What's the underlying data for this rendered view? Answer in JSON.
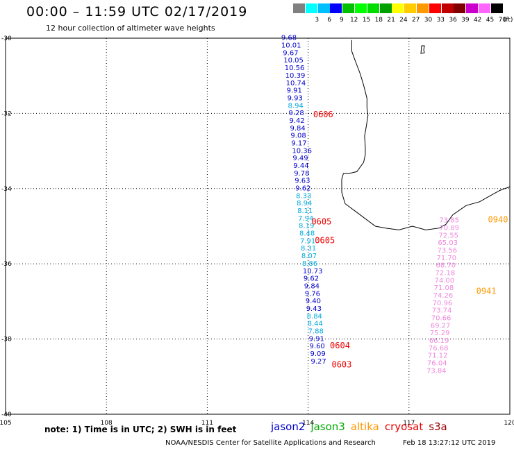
{
  "header": {
    "title": "00:00 – 11:59 UTC 02/17/2019",
    "subtitle": "12 hour collection of altimeter wave heights"
  },
  "legend": {
    "unit": "(ft)",
    "entries": [
      {
        "label": "",
        "color": "#808080"
      },
      {
        "label": "3",
        "color": "#00ffff"
      },
      {
        "label": "6",
        "color": "#00bfff"
      },
      {
        "label": "9",
        "color": "#0000ff"
      },
      {
        "label": "12",
        "color": "#00c000"
      },
      {
        "label": "15",
        "color": "#00ff00"
      },
      {
        "label": "18",
        "color": "#00dd00"
      },
      {
        "label": "21",
        "color": "#00a000"
      },
      {
        "label": "24",
        "color": "#ffff00"
      },
      {
        "label": "27",
        "color": "#ffcc00"
      },
      {
        "label": "30",
        "color": "#ff9900"
      },
      {
        "label": "33",
        "color": "#ff0000"
      },
      {
        "label": "36",
        "color": "#c00000"
      },
      {
        "label": "39",
        "color": "#800000"
      },
      {
        "label": "42",
        "color": "#cc00cc"
      },
      {
        "label": "45",
        "color": "#ff66ff"
      },
      {
        "label": "70",
        "color": "#000000"
      }
    ]
  },
  "map": {
    "lon_range": [
      105,
      120
    ],
    "lat_range": [
      -40,
      -30
    ],
    "lon_ticks": [
      "105",
      "108",
      "111",
      "114",
      "117",
      "120"
    ],
    "lat_ticks": [
      "-30",
      "-32",
      "-34",
      "-36",
      "-38",
      "-40"
    ],
    "lon_tick_values": [
      105,
      108,
      111,
      114,
      117,
      120
    ],
    "lat_tick_values": [
      -30,
      -32,
      -34,
      -36,
      -38,
      -40
    ],
    "track_colors": {
      "dark": "#0000cc",
      "light": "#00aadd",
      "pink": "#ee88dd",
      "red": "#ee0000",
      "orange": "#ff9900"
    },
    "track_jason2": [
      {
        "lon": 113.2,
        "lat": -30.05,
        "v": "9.68",
        "c": "dark"
      },
      {
        "lon": 113.2,
        "lat": -30.25,
        "v": "10.01",
        "c": "dark"
      },
      {
        "lon": 113.25,
        "lat": -30.45,
        "v": "9.67",
        "c": "dark"
      },
      {
        "lon": 113.27,
        "lat": -30.65,
        "v": "10.05",
        "c": "dark"
      },
      {
        "lon": 113.3,
        "lat": -30.85,
        "v": "10.56",
        "c": "dark"
      },
      {
        "lon": 113.32,
        "lat": -31.05,
        "v": "10.39",
        "c": "dark"
      },
      {
        "lon": 113.34,
        "lat": -31.25,
        "v": "10.74",
        "c": "dark"
      },
      {
        "lon": 113.36,
        "lat": -31.45,
        "v": "9.91",
        "c": "dark"
      },
      {
        "lon": 113.38,
        "lat": -31.65,
        "v": "9.93",
        "c": "dark"
      },
      {
        "lon": 113.4,
        "lat": -31.85,
        "v": "8.94",
        "c": "light"
      },
      {
        "lon": 113.42,
        "lat": -32.05,
        "v": "9.28",
        "c": "dark"
      },
      {
        "lon": 113.44,
        "lat": -32.25,
        "v": "9.42",
        "c": "dark"
      },
      {
        "lon": 113.46,
        "lat": -32.45,
        "v": "9.84",
        "c": "dark"
      },
      {
        "lon": 113.48,
        "lat": -32.65,
        "v": "9.08",
        "c": "dark"
      },
      {
        "lon": 113.5,
        "lat": -32.85,
        "v": "9.17",
        "c": "dark"
      },
      {
        "lon": 113.52,
        "lat": -33.05,
        "v": "10.36",
        "c": "dark"
      },
      {
        "lon": 113.54,
        "lat": -33.25,
        "v": "9.49",
        "c": "dark"
      },
      {
        "lon": 113.56,
        "lat": -33.45,
        "v": "9.44",
        "c": "dark"
      },
      {
        "lon": 113.58,
        "lat": -33.65,
        "v": "9.78",
        "c": "dark"
      },
      {
        "lon": 113.6,
        "lat": -33.85,
        "v": "9.63",
        "c": "dark"
      },
      {
        "lon": 113.62,
        "lat": -34.05,
        "v": "9.62",
        "c": "dark"
      },
      {
        "lon": 113.64,
        "lat": -34.25,
        "v": "8.33",
        "c": "light"
      },
      {
        "lon": 113.66,
        "lat": -34.45,
        "v": "8.94",
        "c": "light"
      },
      {
        "lon": 113.68,
        "lat": -34.65,
        "v": "8.11",
        "c": "light"
      },
      {
        "lon": 113.7,
        "lat": -34.85,
        "v": "7.94",
        "c": "light"
      },
      {
        "lon": 113.72,
        "lat": -35.05,
        "v": "8.19",
        "c": "light"
      },
      {
        "lon": 113.74,
        "lat": -35.25,
        "v": "8.48",
        "c": "light"
      },
      {
        "lon": 113.76,
        "lat": -35.45,
        "v": "7.91",
        "c": "light"
      },
      {
        "lon": 113.78,
        "lat": -35.65,
        "v": "8.31",
        "c": "light"
      },
      {
        "lon": 113.8,
        "lat": -35.85,
        "v": "8.07",
        "c": "light"
      },
      {
        "lon": 113.82,
        "lat": -36.05,
        "v": "8.86",
        "c": "light"
      },
      {
        "lon": 113.84,
        "lat": -36.25,
        "v": "10.73",
        "c": "dark"
      },
      {
        "lon": 113.86,
        "lat": -36.45,
        "v": "9.62",
        "c": "dark"
      },
      {
        "lon": 113.88,
        "lat": -36.65,
        "v": "9.84",
        "c": "dark"
      },
      {
        "lon": 113.9,
        "lat": -36.85,
        "v": "9.76",
        "c": "dark"
      },
      {
        "lon": 113.92,
        "lat": -37.05,
        "v": "9.40",
        "c": "dark"
      },
      {
        "lon": 113.94,
        "lat": -37.25,
        "v": "9.43",
        "c": "dark"
      },
      {
        "lon": 113.96,
        "lat": -37.45,
        "v": "8.84",
        "c": "light"
      },
      {
        "lon": 113.98,
        "lat": -37.65,
        "v": "8.44",
        "c": "light"
      },
      {
        "lon": 114.0,
        "lat": -37.85,
        "v": "7.88",
        "c": "light"
      },
      {
        "lon": 114.02,
        "lat": -38.05,
        "v": "9.91",
        "c": "dark"
      },
      {
        "lon": 114.04,
        "lat": -38.25,
        "v": "9.60",
        "c": "dark"
      },
      {
        "lon": 114.06,
        "lat": -38.45,
        "v": "9.09",
        "c": "dark"
      },
      {
        "lon": 114.08,
        "lat": -38.65,
        "v": "9.27",
        "c": "dark"
      }
    ],
    "track_cryosat": [
      {
        "lon": 117.9,
        "lat": -34.9,
        "v": "73.85"
      },
      {
        "lon": 117.9,
        "lat": -35.1,
        "v": "70.89"
      },
      {
        "lon": 117.88,
        "lat": -35.3,
        "v": "72.55"
      },
      {
        "lon": 117.86,
        "lat": -35.5,
        "v": "65.03"
      },
      {
        "lon": 117.84,
        "lat": -35.7,
        "v": "73.56"
      },
      {
        "lon": 117.82,
        "lat": -35.9,
        "v": "71.70"
      },
      {
        "lon": 117.8,
        "lat": -36.1,
        "v": "68.70"
      },
      {
        "lon": 117.78,
        "lat": -36.3,
        "v": "72.18"
      },
      {
        "lon": 117.76,
        "lat": -36.5,
        "v": "74.00"
      },
      {
        "lon": 117.74,
        "lat": -36.7,
        "v": "71.08"
      },
      {
        "lon": 117.72,
        "lat": -36.9,
        "v": "74.26"
      },
      {
        "lon": 117.7,
        "lat": -37.1,
        "v": "70.96"
      },
      {
        "lon": 117.68,
        "lat": -37.3,
        "v": "73.74"
      },
      {
        "lon": 117.66,
        "lat": -37.5,
        "v": "70.66"
      },
      {
        "lon": 117.64,
        "lat": -37.7,
        "v": "69.27"
      },
      {
        "lon": 117.62,
        "lat": -37.9,
        "v": "75.29"
      },
      {
        "lon": 117.6,
        "lat": -38.1,
        "v": "66.19"
      },
      {
        "lon": 117.58,
        "lat": -38.3,
        "v": "76.68"
      },
      {
        "lon": 117.56,
        "lat": -38.5,
        "v": "71.12"
      },
      {
        "lon": 117.54,
        "lat": -38.7,
        "v": "76.04"
      },
      {
        "lon": 117.52,
        "lat": -38.9,
        "v": "73.84"
      }
    ],
    "time_labels": [
      {
        "text": "0606",
        "lon": 114.15,
        "lat": -32.1,
        "c": "red"
      },
      {
        "text": "0605",
        "lon": 114.1,
        "lat": -34.95,
        "c": "red"
      },
      {
        "text": "0605",
        "lon": 114.2,
        "lat": -35.45,
        "c": "red"
      },
      {
        "text": "0604",
        "lon": 114.65,
        "lat": -38.25,
        "c": "red"
      },
      {
        "text": "0603",
        "lon": 114.7,
        "lat": -38.75,
        "c": "red"
      },
      {
        "text": "0940",
        "lon": 119.35,
        "lat": -34.9,
        "c": "orange"
      },
      {
        "text": "0941",
        "lon": 119.0,
        "lat": -36.8,
        "c": "orange"
      }
    ],
    "coastline": [
      [
        115.3,
        -30.05
      ],
      [
        115.3,
        -30.35
      ],
      [
        115.4,
        -30.6
      ],
      [
        115.55,
        -30.95
      ],
      [
        115.65,
        -31.25
      ],
      [
        115.75,
        -31.6
      ],
      [
        115.75,
        -31.85
      ],
      [
        115.78,
        -32.05
      ],
      [
        115.73,
        -32.35
      ],
      [
        115.68,
        -32.6
      ],
      [
        115.7,
        -32.9
      ],
      [
        115.7,
        -33.1
      ],
      [
        115.65,
        -33.3
      ],
      [
        115.45,
        -33.55
      ],
      [
        115.2,
        -33.6
      ],
      [
        115.05,
        -33.6
      ],
      [
        115.0,
        -33.75
      ],
      [
        115.0,
        -34.1
      ],
      [
        115.1,
        -34.4
      ],
      [
        115.4,
        -34.6
      ],
      [
        115.7,
        -34.8
      ],
      [
        116.0,
        -35.0
      ],
      [
        116.3,
        -35.05
      ],
      [
        116.7,
        -35.1
      ],
      [
        117.1,
        -35.0
      ],
      [
        117.5,
        -35.1
      ],
      [
        117.9,
        -35.05
      ],
      [
        118.1,
        -34.95
      ],
      [
        118.3,
        -34.7
      ],
      [
        118.7,
        -34.45
      ],
      [
        119.1,
        -34.35
      ],
      [
        119.4,
        -34.2
      ],
      [
        119.7,
        -34.05
      ],
      [
        120.0,
        -33.95
      ]
    ]
  },
  "footer": {
    "note": "note:  1) Time is in UTC;  2) SWH is in feet",
    "satellites": [
      {
        "name": "jason2",
        "color": "#0000cc"
      },
      {
        "name": "jason3",
        "color": "#00aa00"
      },
      {
        "name": "altika",
        "color": "#ff9900"
      },
      {
        "name": "cryosat",
        "color": "#ee0000"
      },
      {
        "name": "s3a",
        "color": "#990000"
      }
    ],
    "credit": "NOAA/NESDIS Center for Satellite Applications and Research",
    "timestamp": "Feb 18 13:27:12 UTC 2019"
  }
}
